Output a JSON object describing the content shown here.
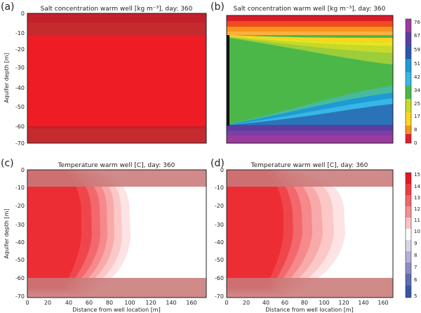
{
  "figure": {
    "panels": [
      {
        "label": "(a)",
        "title": "Salt concentration warm well [kg m⁻³], day: 360",
        "ylabel": "Aquifer depth [m]",
        "xlabel": "",
        "show_xticks": false,
        "show_yticks": true
      },
      {
        "label": "(b)",
        "title": "Salt concentration warm well [kg m⁻³], day: 360",
        "ylabel": "",
        "xlabel": "",
        "show_xticks": false,
        "show_yticks": false
      },
      {
        "label": "(c)",
        "title": "Temperature warm well  [C], day: 360",
        "ylabel": "Aquifer depth [m]",
        "xlabel": "Distance from well location [m]",
        "show_xticks": true,
        "show_yticks": true
      },
      {
        "label": "(d)",
        "title": "Temperature warm well  [C], day: 360",
        "ylabel": "",
        "xlabel": "Distance from well location [m]",
        "show_xticks": true,
        "show_yticks": true
      }
    ],
    "x_ticks": [
      "0",
      "20",
      "40",
      "60",
      "80",
      "100",
      "120",
      "140",
      "160"
    ],
    "y_ticks": [
      "0",
      "-10",
      "-20",
      "-30",
      "-40",
      "-50",
      "-60",
      "-70"
    ],
    "salt_colorbar_ticks": [
      "76",
      "67",
      "59",
      "51",
      "42",
      "34",
      "25",
      "17",
      "8",
      "0"
    ],
    "temp_colorbar_ticks": [
      "15",
      "14",
      "13",
      "12",
      "11",
      "10",
      "9",
      "8",
      "7",
      "6",
      "5"
    ],
    "colors": {
      "plume_red": "#ee1c24",
      "clay_band": "#c97a7a",
      "green": "#4bb749"
    }
  },
  "chart_data": [
    {
      "type": "heatmap",
      "title": "Salt concentration warm well [kg m⁻³], day: 360",
      "ylabel": "Aquifer depth [m]",
      "xlim": [
        0,
        170
      ],
      "ylim": [
        -70,
        0
      ],
      "colorbar": false,
      "layers_depth_m": [
        0,
        -10,
        -60,
        -70
      ]
    },
    {
      "type": "heatmap",
      "title": "Salt concentration warm well [kg m⁻³], day: 360",
      "xlim": [
        0,
        170
      ],
      "ylim": [
        -70,
        0
      ],
      "colorbar_range": [
        0,
        76
      ],
      "colorbar_ticks": [
        76,
        67,
        59,
        51,
        42,
        34,
        25,
        17,
        8,
        0
      ]
    },
    {
      "type": "heatmap",
      "title": "Temperature warm well  [C], day: 360",
      "ylabel": "Aquifer depth [m]",
      "xlabel": "Distance from well location [m]",
      "xlim": [
        0,
        170
      ],
      "ylim": [
        -70,
        0
      ],
      "plume_extent_m": 102
    },
    {
      "type": "heatmap",
      "title": "Temperature warm well  [C], day: 360",
      "xlabel": "Distance from well location [m]",
      "xlim": [
        0,
        170
      ],
      "ylim": [
        -70,
        0
      ],
      "plume_extent_m": 115,
      "colorbar_range": [
        5,
        15
      ],
      "colorbar_ticks": [
        15,
        14,
        13,
        12,
        11,
        10,
        9,
        8,
        7,
        6,
        5
      ]
    }
  ]
}
